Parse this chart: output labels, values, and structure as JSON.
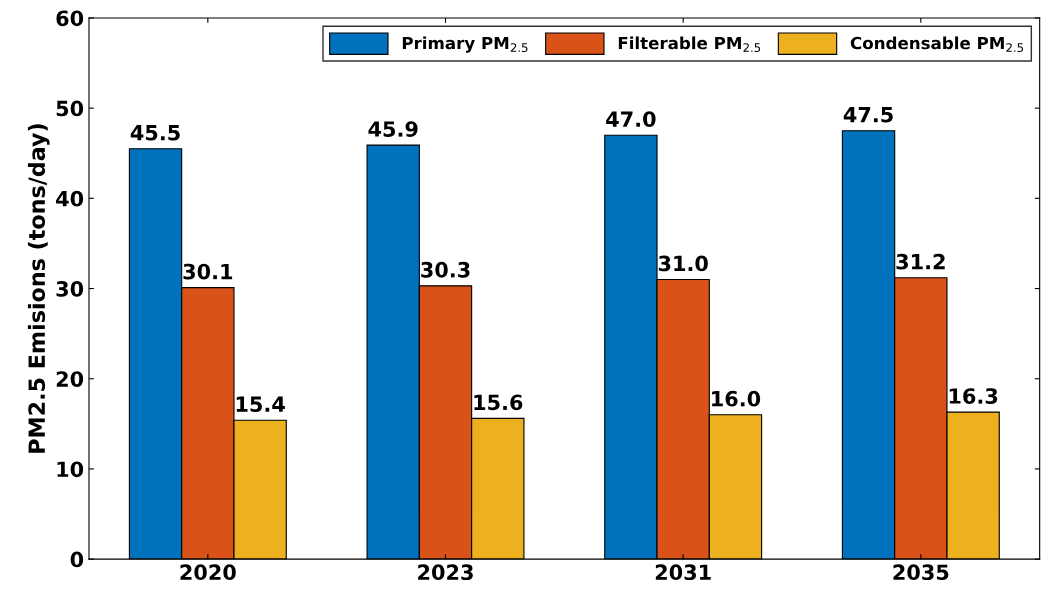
{
  "chart_data": {
    "type": "bar",
    "ylabel": "PM2.5 Emisions (tons/day)",
    "categories": [
      "2020",
      "2023",
      "2031",
      "2035"
    ],
    "series": [
      {
        "name": "Primary PM$_{2.5}$",
        "color": "#0072bd",
        "values": [
          45.5,
          45.9,
          47.0,
          47.5
        ],
        "value_labels": [
          "45.5",
          "45.9",
          "47.0",
          "47.5"
        ]
      },
      {
        "name": "Filterable PM$_{2.5}$",
        "color": "#d95319",
        "values": [
          30.1,
          30.3,
          31.0,
          31.2
        ],
        "value_labels": [
          "30.1",
          "30.3",
          "31.0",
          "31.2"
        ]
      },
      {
        "name": "Condensable PM$_{2.5}$",
        "color": "#edb120",
        "values": [
          15.4,
          15.6,
          16.0,
          16.3
        ],
        "value_labels": [
          "15.4",
          "15.6",
          "16.0",
          "16.3"
        ]
      }
    ],
    "ylim": [
      0,
      60
    ],
    "yticks": [
      0,
      10,
      20,
      30,
      40,
      50,
      60
    ],
    "grid": false,
    "legend": "top right"
  }
}
